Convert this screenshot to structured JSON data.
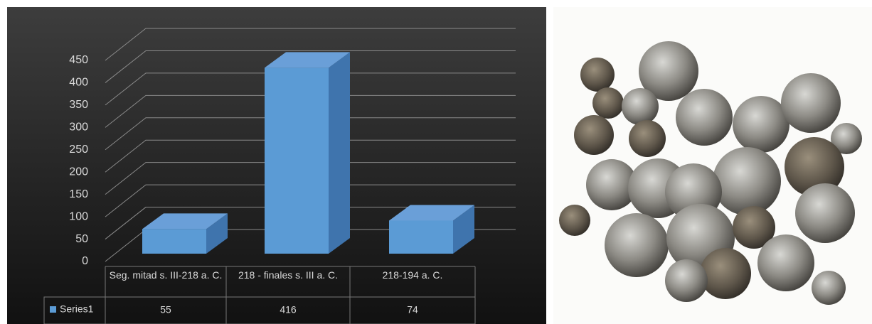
{
  "chart_data": {
    "type": "bar",
    "categories": [
      "Seg. mitad s. III-218 a. C.",
      "218 - finales s. III a. C.",
      "218-194 a. C."
    ],
    "series": [
      {
        "name": "Series1",
        "color": "#5b9bd5",
        "values": [
          55,
          416,
          74
        ]
      }
    ],
    "ylim": [
      0,
      450
    ],
    "yticks": [
      0,
      50,
      100,
      150,
      200,
      250,
      300,
      350,
      400,
      450
    ],
    "grid": true
  }
}
